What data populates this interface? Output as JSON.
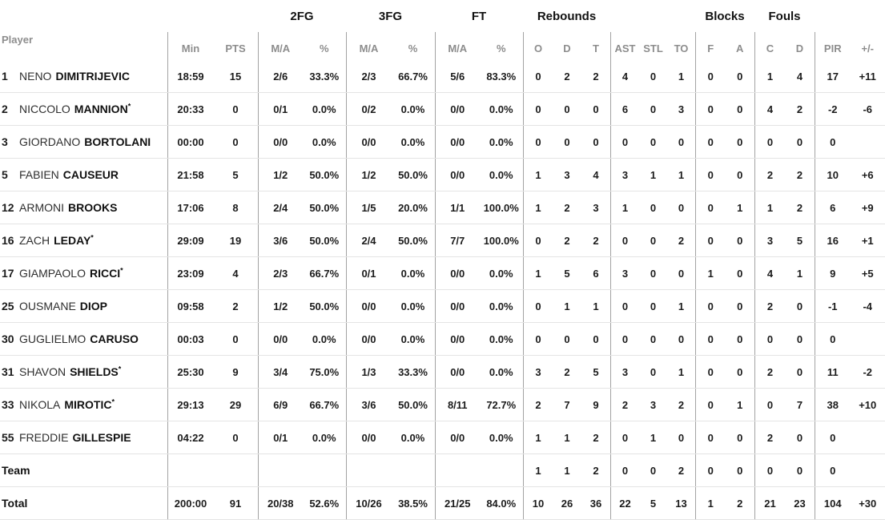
{
  "table": {
    "player_col_header": "Player",
    "starter_mark": "*",
    "group_headers": {
      "fg2": "2FG",
      "fg3": "3FG",
      "ft": "FT",
      "rebounds": "Rebounds",
      "blocks": "Blocks",
      "fouls": "Fouls"
    },
    "sub_headers": {
      "min": "Min",
      "pts": "PTS",
      "ma": "M/A",
      "pct": "%",
      "o": "O",
      "d": "D",
      "t": "T",
      "ast": "AST",
      "stl": "STL",
      "to": "TO",
      "f": "F",
      "a": "A",
      "c": "C",
      "pir": "PIR",
      "plus_minus": "+/-"
    },
    "rows": [
      {
        "num": "1",
        "first": "NENO",
        "last": "DIMITRIJEVIC",
        "star": false,
        "cells": [
          "18:59",
          "15",
          "2/6",
          "33.3%",
          "2/3",
          "66.7%",
          "5/6",
          "83.3%",
          "0",
          "2",
          "2",
          "4",
          "0",
          "1",
          "0",
          "0",
          "1",
          "4",
          "17",
          "+11"
        ]
      },
      {
        "num": "2",
        "first": "NICCOLO",
        "last": "MANNION",
        "star": true,
        "cells": [
          "20:33",
          "0",
          "0/1",
          "0.0%",
          "0/2",
          "0.0%",
          "0/0",
          "0.0%",
          "0",
          "0",
          "0",
          "6",
          "0",
          "3",
          "0",
          "0",
          "4",
          "2",
          "-2",
          "-6"
        ]
      },
      {
        "num": "3",
        "first": "GIORDANO",
        "last": "BORTOLANI",
        "star": false,
        "cells": [
          "00:00",
          "0",
          "0/0",
          "0.0%",
          "0/0",
          "0.0%",
          "0/0",
          "0.0%",
          "0",
          "0",
          "0",
          "0",
          "0",
          "0",
          "0",
          "0",
          "0",
          "0",
          "0",
          ""
        ]
      },
      {
        "num": "5",
        "first": "FABIEN",
        "last": "CAUSEUR",
        "star": false,
        "cells": [
          "21:58",
          "5",
          "1/2",
          "50.0%",
          "1/2",
          "50.0%",
          "0/0",
          "0.0%",
          "1",
          "3",
          "4",
          "3",
          "1",
          "1",
          "0",
          "0",
          "2",
          "2",
          "10",
          "+6"
        ]
      },
      {
        "num": "12",
        "first": "ARMONI",
        "last": "BROOKS",
        "star": false,
        "cells": [
          "17:06",
          "8",
          "2/4",
          "50.0%",
          "1/5",
          "20.0%",
          "1/1",
          "100.0%",
          "1",
          "2",
          "3",
          "1",
          "0",
          "0",
          "0",
          "1",
          "1",
          "2",
          "6",
          "+9"
        ]
      },
      {
        "num": "16",
        "first": "ZACH",
        "last": "LEDAY",
        "star": true,
        "cells": [
          "29:09",
          "19",
          "3/6",
          "50.0%",
          "2/4",
          "50.0%",
          "7/7",
          "100.0%",
          "0",
          "2",
          "2",
          "0",
          "0",
          "2",
          "0",
          "0",
          "3",
          "5",
          "16",
          "+1"
        ]
      },
      {
        "num": "17",
        "first": "GIAMPAOLO",
        "last": "RICCI",
        "star": true,
        "cells": [
          "23:09",
          "4",
          "2/3",
          "66.7%",
          "0/1",
          "0.0%",
          "0/0",
          "0.0%",
          "1",
          "5",
          "6",
          "3",
          "0",
          "0",
          "1",
          "0",
          "4",
          "1",
          "9",
          "+5"
        ]
      },
      {
        "num": "25",
        "first": "OUSMANE",
        "last": "DIOP",
        "star": false,
        "cells": [
          "09:58",
          "2",
          "1/2",
          "50.0%",
          "0/0",
          "0.0%",
          "0/0",
          "0.0%",
          "0",
          "1",
          "1",
          "0",
          "0",
          "1",
          "0",
          "0",
          "2",
          "0",
          "-1",
          "-4"
        ]
      },
      {
        "num": "30",
        "first": "GUGLIELMO",
        "last": "CARUSO",
        "star": false,
        "cells": [
          "00:03",
          "0",
          "0/0",
          "0.0%",
          "0/0",
          "0.0%",
          "0/0",
          "0.0%",
          "0",
          "0",
          "0",
          "0",
          "0",
          "0",
          "0",
          "0",
          "0",
          "0",
          "0",
          ""
        ]
      },
      {
        "num": "31",
        "first": "SHAVON",
        "last": "SHIELDS",
        "star": true,
        "cells": [
          "25:30",
          "9",
          "3/4",
          "75.0%",
          "1/3",
          "33.3%",
          "0/0",
          "0.0%",
          "3",
          "2",
          "5",
          "3",
          "0",
          "1",
          "0",
          "0",
          "2",
          "0",
          "11",
          "-2"
        ]
      },
      {
        "num": "33",
        "first": "NIKOLA",
        "last": "MIROTIC",
        "star": true,
        "cells": [
          "29:13",
          "29",
          "6/9",
          "66.7%",
          "3/6",
          "50.0%",
          "8/11",
          "72.7%",
          "2",
          "7",
          "9",
          "2",
          "3",
          "2",
          "0",
          "1",
          "0",
          "7",
          "38",
          "+10"
        ]
      },
      {
        "num": "55",
        "first": "FREDDIE",
        "last": "GILLESPIE",
        "star": false,
        "cells": [
          "04:22",
          "0",
          "0/1",
          "0.0%",
          "0/0",
          "0.0%",
          "0/0",
          "0.0%",
          "1",
          "1",
          "2",
          "0",
          "1",
          "0",
          "0",
          "0",
          "2",
          "0",
          "0",
          ""
        ]
      }
    ],
    "team_row": {
      "label": "Team",
      "cells": [
        "",
        "",
        "",
        "",
        "",
        "",
        "",
        "",
        "1",
        "1",
        "2",
        "0",
        "0",
        "2",
        "0",
        "0",
        "0",
        "0",
        "0",
        ""
      ]
    },
    "total_row": {
      "label": "Total",
      "cells": [
        "200:00",
        "91",
        "20/38",
        "52.6%",
        "10/26",
        "38.5%",
        "21/25",
        "84.0%",
        "10",
        "26",
        "36",
        "22",
        "5",
        "13",
        "1",
        "2",
        "21",
        "23",
        "104",
        "+30"
      ]
    }
  }
}
